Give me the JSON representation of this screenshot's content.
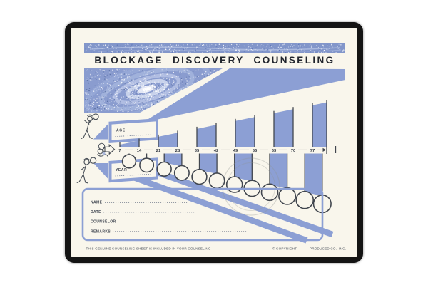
{
  "page": {
    "title": "BLOCKAGE DISCOVERY COUNSELING"
  },
  "timeline": {
    "age_label": "AGE",
    "year_label": "YEAR",
    "ages": [
      7,
      14,
      21,
      28,
      35,
      42,
      49,
      56,
      63,
      70,
      77
    ],
    "end_marker": "→|"
  },
  "form": {
    "fields": [
      {
        "label": "NAME"
      },
      {
        "label": "DATE"
      },
      {
        "label": "COUNSELOR"
      },
      {
        "label": "REMARKS"
      }
    ]
  },
  "footer": {
    "left": "THIS GENUINE COUNSELING SHEET IS INCLUDED IN YOUR COUNSELING",
    "copyright": "© COPYRIGHT",
    "producer": "PRODUCED CO., INC."
  },
  "colors": {
    "print_blue": "#8c9fd4",
    "ink": "#41464e",
    "sheet": "#f9f6ec",
    "frame": "#141414"
  }
}
